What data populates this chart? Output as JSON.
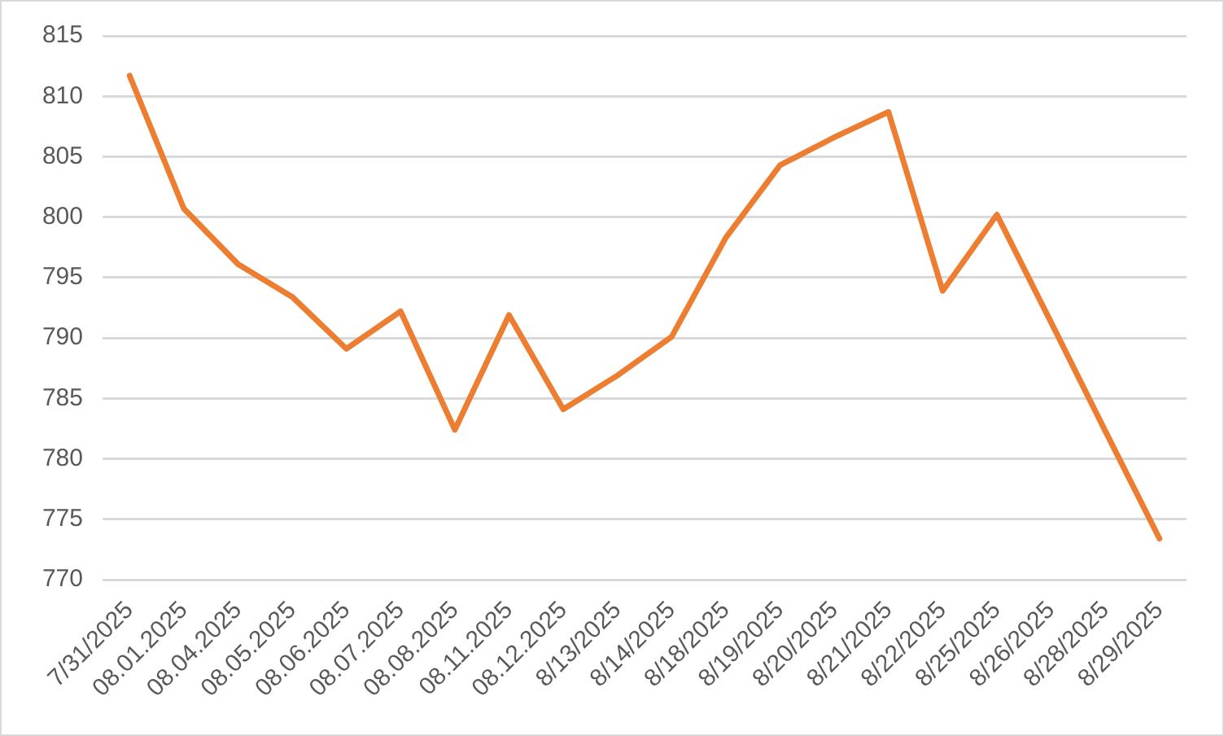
{
  "chart_data": {
    "type": "line",
    "categories": [
      "7/31/2025",
      "08.01.2025",
      "08.04.2025",
      "08.05.2025",
      "08.06.2025",
      "08.07.2025",
      "08.08.2025",
      "08.11.2025",
      "08.12.2025",
      "8/13/2025",
      "8/14/2025",
      "8/18/2025",
      "8/19/2025",
      "8/20/2025",
      "8/21/2025",
      "8/22/2025",
      "8/25/2025",
      "8/26/2025",
      "8/28/2025",
      "8/29/2025"
    ],
    "series": [
      {
        "color": "#ed7d31",
        "values": [
          811.7,
          800.7,
          796.1,
          793.4,
          789.1,
          792.2,
          782.4,
          791.9,
          784.1,
          786.9,
          790.1,
          798.3,
          804.3,
          806.6,
          808.7,
          793.9,
          800.2,
          791.3,
          782.3,
          773.4
        ]
      }
    ],
    "ylim": [
      770,
      815
    ],
    "yticks": [
      770,
      775,
      780,
      785,
      790,
      795,
      800,
      805,
      810,
      815
    ],
    "grid": "y",
    "marker": "none",
    "line_style": "solid"
  }
}
